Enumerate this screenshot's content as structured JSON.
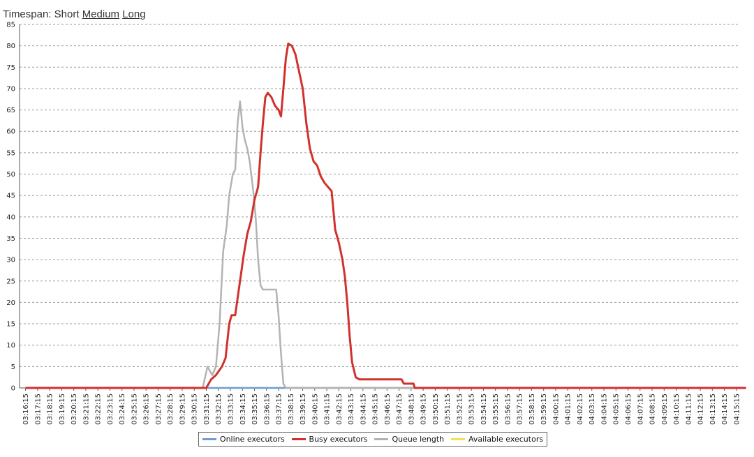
{
  "timespan": {
    "label": "Timespan:",
    "options": [
      "Short",
      "Medium",
      "Long"
    ],
    "selected": "Short"
  },
  "chart_data": {
    "type": "line",
    "ylim": [
      0,
      85
    ],
    "yticks": [
      0,
      5,
      10,
      15,
      20,
      25,
      30,
      35,
      40,
      45,
      50,
      55,
      60,
      65,
      70,
      75,
      80,
      85
    ],
    "grid": true,
    "legend_position": "bottom",
    "categories": [
      "03:16:15",
      "03:17:15",
      "03:18:15",
      "03:19:15",
      "03:20:15",
      "03:21:15",
      "03:22:15",
      "03:23:15",
      "03:24:15",
      "03:25:15",
      "03:26:15",
      "03:27:15",
      "03:28:15",
      "03:29:15",
      "03:30:15",
      "03:31:15",
      "03:32:15",
      "03:33:15",
      "03:34:15",
      "03:35:15",
      "03:36:15",
      "03:37:15",
      "03:38:15",
      "03:39:15",
      "03:40:15",
      "03:41:15",
      "03:42:15",
      "03:43:15",
      "03:44:15",
      "03:45:15",
      "03:46:15",
      "03:47:15",
      "03:48:15",
      "03:49:15",
      "03:50:15",
      "03:51:15",
      "03:52:15",
      "03:53:15",
      "03:54:15",
      "03:55:15",
      "03:56:15",
      "03:57:15",
      "03:58:15",
      "03:59:15",
      "04:00:15",
      "04:01:15",
      "04:02:15",
      "04:03:15",
      "04:04:15",
      "04:05:15",
      "04:06:15",
      "04:07:15",
      "04:08:15",
      "04:09:15",
      "04:10:15",
      "04:11:15",
      "04:12:15",
      "04:13:15",
      "04:14:15",
      "04:15:15"
    ],
    "series": [
      {
        "name": "Online executors",
        "color": "#6f9fd8",
        "points": [
          [
            0,
            0
          ],
          [
            59.8,
            0
          ]
        ]
      },
      {
        "name": "Busy executors",
        "color": "#d0312d",
        "points": [
          [
            0,
            0
          ],
          [
            15.0,
            0
          ],
          [
            15.4,
            2
          ],
          [
            15.8,
            3
          ],
          [
            16.3,
            5
          ],
          [
            16.6,
            7
          ],
          [
            16.9,
            15
          ],
          [
            17.1,
            17
          ],
          [
            17.4,
            17
          ],
          [
            17.8,
            25
          ],
          [
            18.1,
            31
          ],
          [
            18.4,
            36
          ],
          [
            18.7,
            39
          ],
          [
            19.0,
            44
          ],
          [
            19.3,
            47
          ],
          [
            19.5,
            55
          ],
          [
            19.7,
            62
          ],
          [
            19.9,
            68
          ],
          [
            20.1,
            69
          ],
          [
            20.4,
            68
          ],
          [
            20.7,
            66
          ],
          [
            21.0,
            65
          ],
          [
            21.2,
            63.5
          ],
          [
            21.4,
            70
          ],
          [
            21.6,
            77
          ],
          [
            21.8,
            80.5
          ],
          [
            22.1,
            80
          ],
          [
            22.4,
            78
          ],
          [
            22.7,
            74
          ],
          [
            23.0,
            70
          ],
          [
            23.3,
            62
          ],
          [
            23.6,
            56
          ],
          [
            23.9,
            53
          ],
          [
            24.2,
            52
          ],
          [
            24.5,
            49.5
          ],
          [
            24.8,
            48
          ],
          [
            25.1,
            47
          ],
          [
            25.4,
            46
          ],
          [
            25.7,
            37
          ],
          [
            26.0,
            34
          ],
          [
            26.3,
            30
          ],
          [
            26.5,
            26
          ],
          [
            26.7,
            20
          ],
          [
            26.9,
            12
          ],
          [
            27.1,
            6
          ],
          [
            27.4,
            2.5
          ],
          [
            27.7,
            2
          ],
          [
            30.0,
            2
          ],
          [
            31.2,
            2
          ],
          [
            31.4,
            1
          ],
          [
            32.2,
            1
          ],
          [
            32.3,
            0
          ],
          [
            59.8,
            0
          ]
        ]
      },
      {
        "name": "Queue length",
        "color": "#b3b3b3",
        "points": [
          [
            0,
            0
          ],
          [
            14.7,
            0
          ],
          [
            15.1,
            5
          ],
          [
            15.5,
            3
          ],
          [
            15.8,
            5
          ],
          [
            16.1,
            15
          ],
          [
            16.4,
            32
          ],
          [
            16.7,
            38
          ],
          [
            16.9,
            45
          ],
          [
            17.2,
            50
          ],
          [
            17.4,
            51
          ],
          [
            17.6,
            62
          ],
          [
            17.8,
            67
          ],
          [
            18.0,
            61
          ],
          [
            18.2,
            58
          ],
          [
            18.4,
            56
          ],
          [
            18.6,
            53
          ],
          [
            18.9,
            46
          ],
          [
            19.1,
            40
          ],
          [
            19.3,
            30
          ],
          [
            19.5,
            24
          ],
          [
            19.7,
            23
          ],
          [
            20.5,
            23
          ],
          [
            20.8,
            23
          ],
          [
            21.0,
            17
          ],
          [
            21.2,
            8
          ],
          [
            21.4,
            1
          ],
          [
            21.6,
            0
          ],
          [
            59.8,
            0
          ]
        ]
      },
      {
        "name": "Available executors",
        "color": "#f2e24b",
        "points": [
          [
            0,
            0
          ],
          [
            59.8,
            0
          ]
        ]
      }
    ]
  }
}
